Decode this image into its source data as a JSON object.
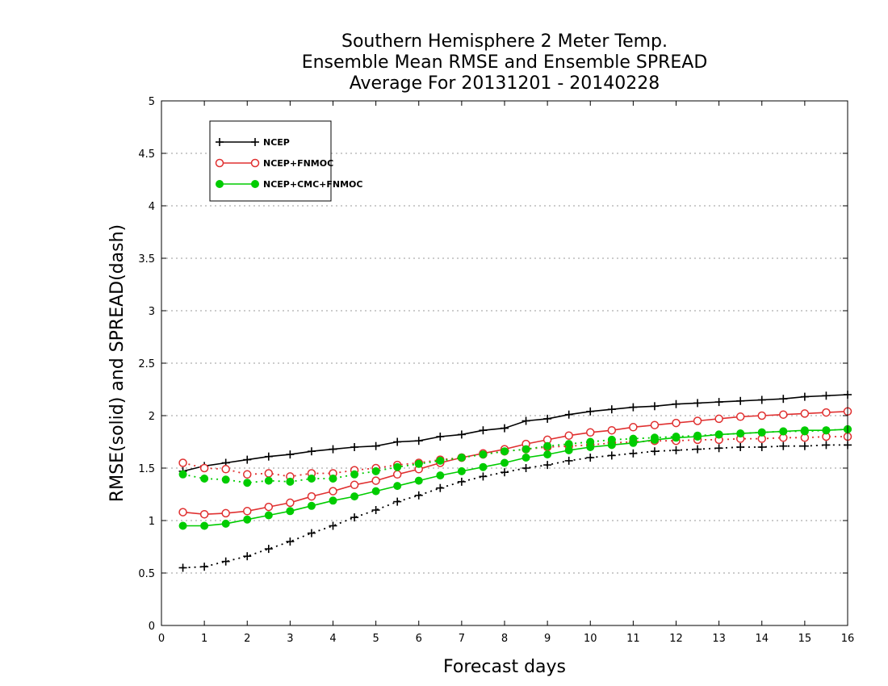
{
  "chart_data": {
    "type": "line",
    "title": [
      "Southern Hemisphere 2 Meter Temp.",
      "Ensemble Mean RMSE and Ensemble SPREAD",
      "Average For 20131201 - 20140228"
    ],
    "xlabel": "Forecast days",
    "ylabel": "RMSE(solid) and SPREAD(dash)",
    "xlim": [
      0,
      16
    ],
    "ylim": [
      0,
      5
    ],
    "xticks": [
      "0",
      "1",
      "2",
      "3",
      "4",
      "5",
      "6",
      "7",
      "8",
      "9",
      "10",
      "11",
      "12",
      "13",
      "14",
      "15",
      "16"
    ],
    "yticks": [
      "0",
      "0.5",
      "1",
      "1.5",
      "2",
      "2.5",
      "3",
      "3.5",
      "4",
      "4.5",
      "5"
    ],
    "grid": "horizontal dotted",
    "legend_position": "top-left",
    "x": [
      0.5,
      1,
      1.5,
      2,
      2.5,
      3,
      3.5,
      4,
      4.5,
      5,
      5.5,
      6,
      6.5,
      7,
      7.5,
      8,
      8.5,
      9,
      9.5,
      10,
      10.5,
      11,
      11.5,
      12,
      12.5,
      13,
      13.5,
      14,
      14.5,
      15,
      15.5,
      16
    ],
    "series": [
      {
        "name": "NCEP",
        "color": "#000000",
        "marker": "plus",
        "rmse": [
          1.47,
          1.52,
          1.55,
          1.58,
          1.61,
          1.63,
          1.66,
          1.68,
          1.7,
          1.71,
          1.75,
          1.76,
          1.8,
          1.82,
          1.86,
          1.88,
          1.95,
          1.97,
          2.01,
          2.04,
          2.06,
          2.08,
          2.09,
          2.11,
          2.12,
          2.13,
          2.14,
          2.15,
          2.16,
          2.18,
          2.19,
          2.2
        ],
        "spread": [
          0.55,
          0.56,
          0.61,
          0.66,
          0.73,
          0.8,
          0.88,
          0.95,
          1.03,
          1.1,
          1.18,
          1.24,
          1.31,
          1.37,
          1.42,
          1.46,
          1.5,
          1.53,
          1.57,
          1.6,
          1.62,
          1.64,
          1.66,
          1.67,
          1.68,
          1.69,
          1.7,
          1.7,
          1.71,
          1.71,
          1.72,
          1.72
        ]
      },
      {
        "name": "NCEP+FNMOC",
        "color": "#e03030",
        "marker": "open-circle",
        "rmse": [
          1.08,
          1.06,
          1.07,
          1.09,
          1.13,
          1.17,
          1.23,
          1.28,
          1.34,
          1.38,
          1.44,
          1.49,
          1.55,
          1.6,
          1.64,
          1.68,
          1.73,
          1.77,
          1.81,
          1.84,
          1.86,
          1.89,
          1.91,
          1.93,
          1.95,
          1.97,
          1.99,
          2.0,
          2.01,
          2.02,
          2.03,
          2.04
        ],
        "spread": [
          1.55,
          1.5,
          1.49,
          1.44,
          1.45,
          1.42,
          1.45,
          1.45,
          1.48,
          1.5,
          1.53,
          1.55,
          1.58,
          1.6,
          1.63,
          1.66,
          1.68,
          1.7,
          1.71,
          1.72,
          1.74,
          1.75,
          1.76,
          1.76,
          1.77,
          1.77,
          1.78,
          1.78,
          1.79,
          1.79,
          1.8,
          1.8
        ]
      },
      {
        "name": "NCEP+CMC+FNMOC",
        "color": "#00cc00",
        "marker": "filled-circle",
        "rmse": [
          0.95,
          0.95,
          0.97,
          1.01,
          1.05,
          1.09,
          1.14,
          1.19,
          1.23,
          1.28,
          1.33,
          1.38,
          1.43,
          1.47,
          1.51,
          1.55,
          1.6,
          1.63,
          1.67,
          1.7,
          1.72,
          1.74,
          1.77,
          1.79,
          1.8,
          1.82,
          1.83,
          1.84,
          1.85,
          1.86,
          1.86,
          1.87
        ],
        "spread": [
          1.44,
          1.4,
          1.39,
          1.36,
          1.38,
          1.37,
          1.4,
          1.4,
          1.44,
          1.47,
          1.51,
          1.54,
          1.57,
          1.6,
          1.63,
          1.66,
          1.68,
          1.71,
          1.73,
          1.75,
          1.77,
          1.78,
          1.79,
          1.8,
          1.81,
          1.82,
          1.83,
          1.84,
          1.85,
          1.85,
          1.86,
          1.87
        ]
      }
    ]
  }
}
